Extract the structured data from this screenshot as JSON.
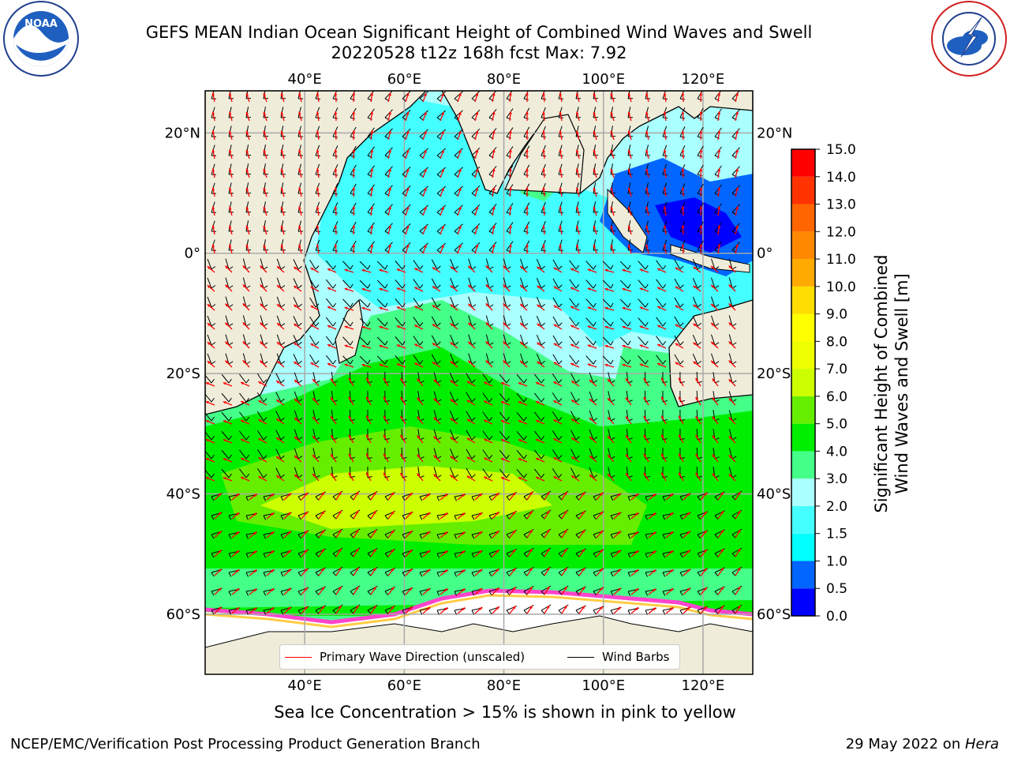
{
  "title": {
    "line1": "GEFS MEAN Indian Ocean Significant Height of Combined Wind Waves and Swell",
    "line2": "20220528 t12z 168h fcst   Max: 7.92"
  },
  "logos": {
    "left": "noara-logo",
    "left_text": "NOAA",
    "right": "national-weather-service-logo",
    "right_text": "NATIONAL WEATHER SERVICE"
  },
  "map": {
    "lon_ticks": [
      "40°E",
      "60°E",
      "80°E",
      "100°E",
      "120°E"
    ],
    "lat_ticks": [
      "20°N",
      "0°",
      "20°S",
      "40°S",
      "60°S"
    ],
    "lon_values": [
      40,
      60,
      80,
      100,
      120
    ],
    "lat_values": [
      20,
      0,
      -20,
      -40,
      -60
    ],
    "lon_range": [
      20,
      130
    ],
    "lat_range": [
      -70,
      27
    ],
    "grid": true,
    "land_color": "#efedda",
    "ice_note": "Sea Ice Concentration > 15% is shown in pink to yellow"
  },
  "legend": {
    "wave_label": "Primary Wave Direction (unscaled)",
    "wind_label": "Wind Barbs",
    "wave_color": "#ff0000",
    "wind_color": "#000000",
    "placement": "lower-center"
  },
  "colorbar": {
    "label_line1": "Significant Height of Combined",
    "label_line2": "Wind Waves and Swell [m]",
    "ticks": [
      "0.0",
      "0.5",
      "1.0",
      "1.5",
      "2.0",
      "3.0",
      "4.0",
      "5.0",
      "6.0",
      "7.0",
      "8.0",
      "9.0",
      "10.0",
      "11.0",
      "12.0",
      "13.0",
      "14.0",
      "15.0"
    ],
    "colors": [
      "#0000ff",
      "#0066ff",
      "#00ffff",
      "#44ffff",
      "#aaffff",
      "#44ff88",
      "#00ee00",
      "#66ee00",
      "#ccff00",
      "#eeff00",
      "#ffff00",
      "#ffdd00",
      "#ffaa00",
      "#ff8800",
      "#ff6600",
      "#ff3300",
      "#ff0000"
    ]
  },
  "footer": {
    "left": "NCEP/EMC/Verification Post Processing Product Generation Branch",
    "right_date": "29 May 2022 on ",
    "right_host": "Hera"
  }
}
